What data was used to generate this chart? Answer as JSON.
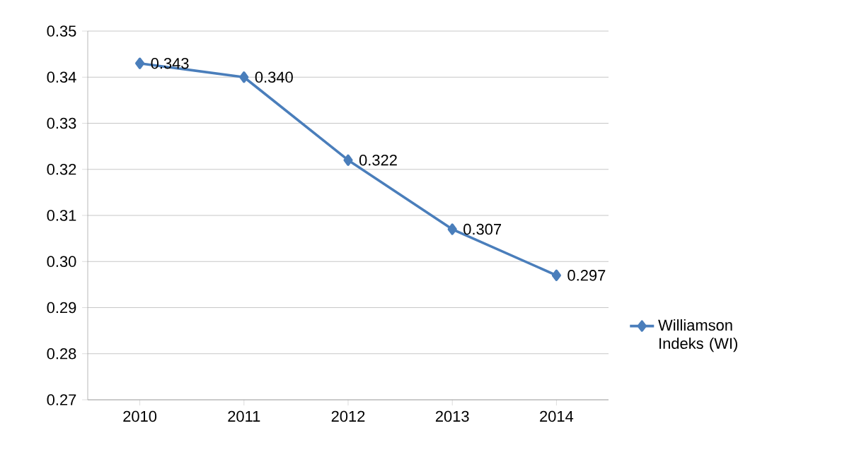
{
  "chart_data": {
    "type": "line",
    "categories": [
      "2010",
      "2011",
      "2012",
      "2013",
      "2014"
    ],
    "series": [
      {
        "name": "Williamson Indeks (WI)",
        "color": "#4a7ebb",
        "values": [
          0.343,
          0.34,
          0.322,
          0.307,
          0.297
        ],
        "value_labels": [
          "0.343",
          "0.340",
          "0.322",
          "0.307",
          "0.297"
        ]
      }
    ],
    "ylim": [
      0.27,
      0.35
    ],
    "yticks": [
      {
        "value": 0.27,
        "label": "0.27"
      },
      {
        "value": 0.28,
        "label": "0.28"
      },
      {
        "value": 0.29,
        "label": "0.29"
      },
      {
        "value": 0.3,
        "label": "0.30"
      },
      {
        "value": 0.31,
        "label": "0.31"
      },
      {
        "value": 0.32,
        "label": "0.32"
      },
      {
        "value": 0.33,
        "label": "0.33"
      },
      {
        "value": 0.34,
        "label": "0.34"
      },
      {
        "value": 0.35,
        "label": "0.35"
      }
    ],
    "grid": "y",
    "legend": "right",
    "marker": "diamond",
    "line_style": "solid"
  }
}
